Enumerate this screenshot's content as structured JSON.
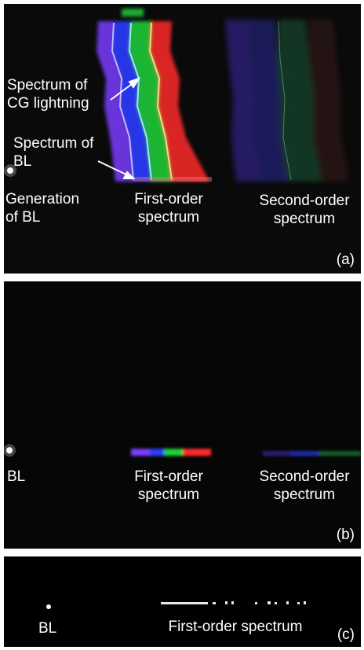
{
  "panels": [
    {
      "tag": "(a)",
      "labels": {
        "spectrum_cg": "Spectrum of\nCG lightning",
        "spectrum_bl": "Spectrum of\nBL",
        "generation": "Generation\nof BL",
        "first_order": "First-order\nspectrum",
        "second_order": "Second-order\nspectrum"
      }
    },
    {
      "tag": "(b)",
      "labels": {
        "bl": "BL",
        "first_order": "First-order\nspectrum",
        "second_order": "Second-order\nspectrum"
      }
    },
    {
      "tag": "(c)",
      "labels": {
        "bl": "BL",
        "first_order": "First-order spectrum"
      }
    }
  ],
  "colors": {
    "violet": "#7a3cff",
    "blue": "#2a3cff",
    "green": "#1fd43a",
    "red": "#ff2a2a"
  }
}
